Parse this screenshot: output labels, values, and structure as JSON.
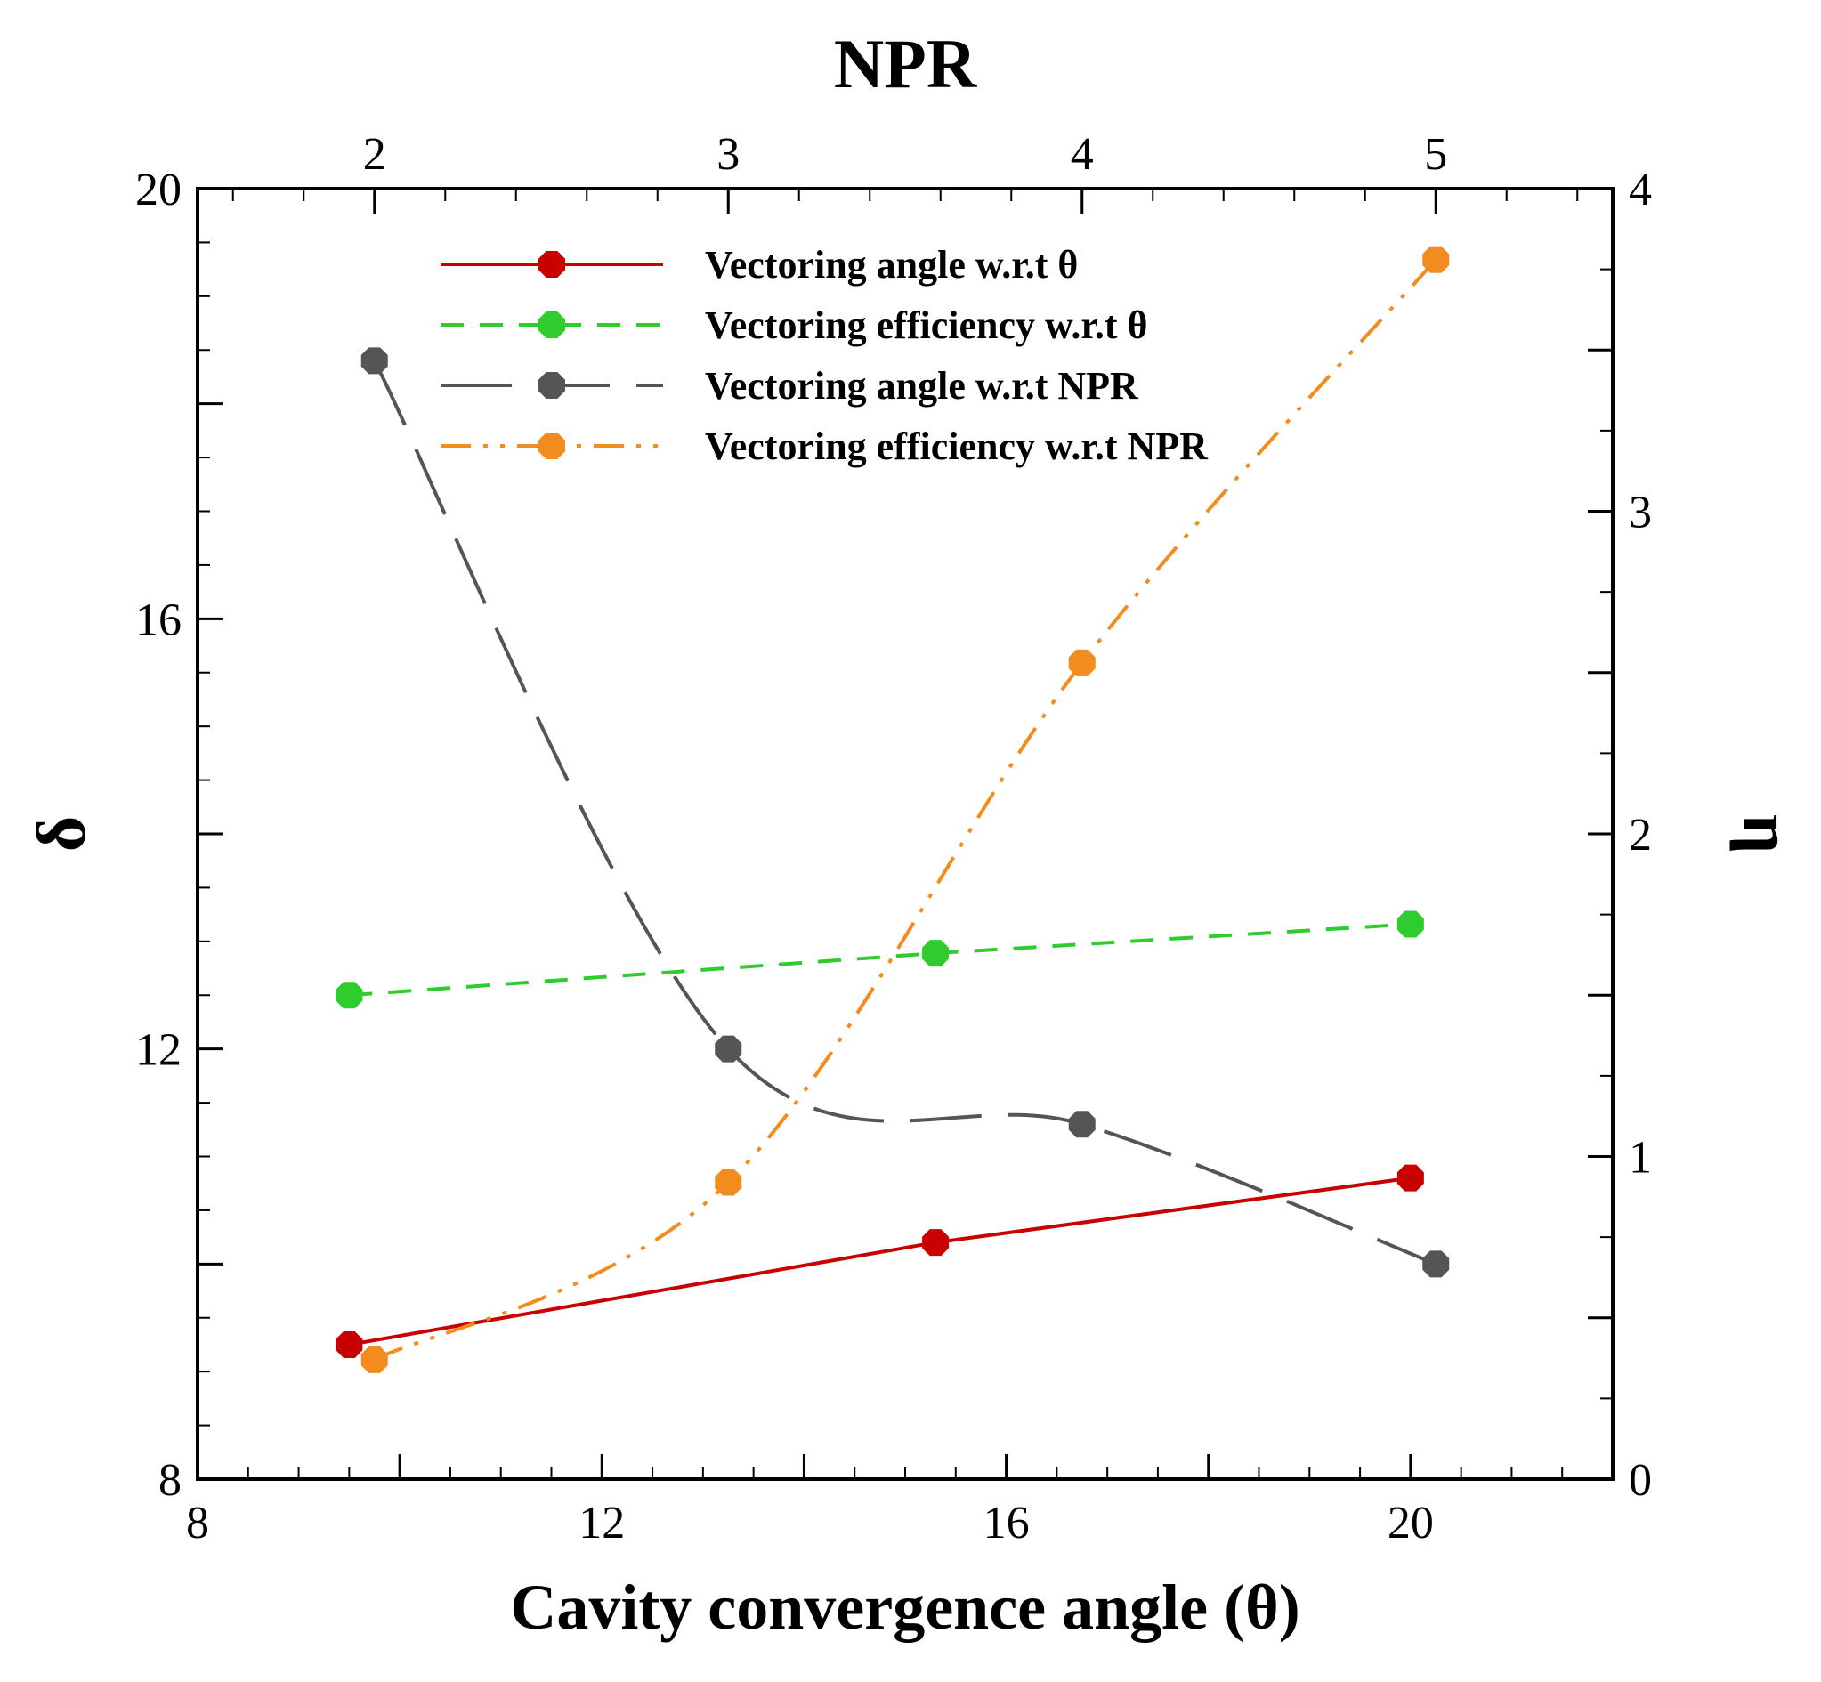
{
  "chart_data": {
    "type": "line",
    "title": "NPR",
    "xlabel": "Cavity convergence angle (θ)",
    "ylabel_left": "δ",
    "ylabel_right": "η",
    "xlim_bottom": [
      8,
      22
    ],
    "xlim_top": [
      1.5,
      5.5
    ],
    "ylim_left": [
      8,
      20
    ],
    "ylim_right": [
      0,
      4
    ],
    "x_ticks_bottom": [
      8,
      12,
      16,
      20
    ],
    "x_ticks_top": [
      2,
      3,
      4,
      5
    ],
    "y_ticks_left": [
      8,
      12,
      16,
      20
    ],
    "y_ticks_right": [
      0,
      1,
      2,
      3,
      4
    ],
    "x_tick_labels_bottom": [
      "8",
      "12",
      "16",
      "20"
    ],
    "x_tick_labels_top": [
      "2",
      "3",
      "4",
      "5"
    ],
    "y_tick_labels_left": [
      "8",
      "12",
      "16",
      "20"
    ],
    "y_tick_labels_right": [
      "0",
      "1",
      "2",
      "3",
      "4"
    ],
    "grid": false,
    "legend_position": "top-center",
    "series": [
      {
        "name": "Vectoring angle w.r.t θ",
        "x_axis": "bottom",
        "y_axis": "left",
        "color": "#c80000",
        "line_style": "solid",
        "x": [
          9.5,
          15.3,
          20
        ],
        "y": [
          9.25,
          10.2,
          10.8
        ]
      },
      {
        "name": "Vectoring efficiency w.r.t θ",
        "x_axis": "bottom",
        "y_axis": "right",
        "color": "#2ecc2e",
        "line_style": "dashed",
        "x": [
          9.5,
          15.3,
          20
        ],
        "y": [
          1.5,
          1.63,
          1.72
        ]
      },
      {
        "name": "Vectoring angle w.r.t NPR",
        "x_axis": "top",
        "y_axis": "left",
        "color": "#555555",
        "line_style": "longdash",
        "x": [
          2.0,
          3.0,
          4.0,
          5.0
        ],
        "y": [
          18.4,
          12.0,
          11.3,
          10.0
        ]
      },
      {
        "name": "Vectoring efficiency w.r.t NPR",
        "x_axis": "top",
        "y_axis": "right",
        "color": "#f28c1e",
        "line_style": "dashdotdot",
        "x": [
          2.0,
          3.0,
          4.0,
          5.0
        ],
        "y": [
          0.37,
          0.92,
          2.53,
          3.78
        ]
      }
    ]
  }
}
